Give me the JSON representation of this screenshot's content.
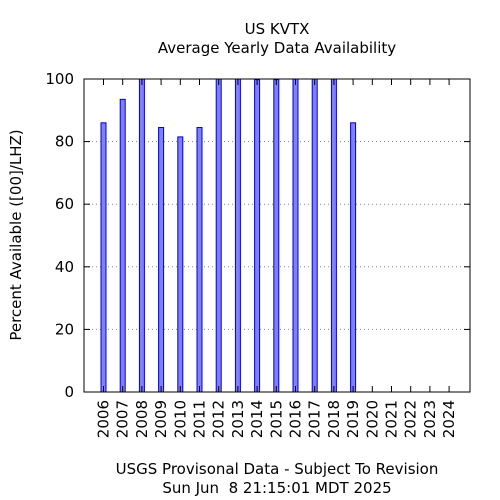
{
  "chart_data": {
    "type": "bar",
    "title": "US KVTX",
    "subtitle": "Average Yearly Data Availability",
    "ylabel": "Percent Available ([00]/LHZ)",
    "xlabel": "USGS Provisonal Data - Subject To Revision",
    "footer": "Sun Jun  8 21:15:01 MDT 2025",
    "categories": [
      "2006",
      "2007",
      "2008",
      "2009",
      "2010",
      "2011",
      "2012",
      "2013",
      "2014",
      "2015",
      "2016",
      "2017",
      "2018",
      "2019",
      "2020",
      "2021",
      "2022",
      "2023",
      "2024"
    ],
    "values": [
      86,
      93.5,
      100,
      84.5,
      81.5,
      84.5,
      100,
      100,
      99.8,
      99.8,
      100,
      100,
      100,
      86,
      0,
      0,
      0,
      0,
      0
    ],
    "yticks": [
      "0",
      "20",
      "40",
      "60",
      "80",
      "100"
    ],
    "ylim": [
      0,
      100
    ],
    "grid": true,
    "bar_color": "#7f7fff",
    "bar_edge_color": "#0000cc"
  }
}
